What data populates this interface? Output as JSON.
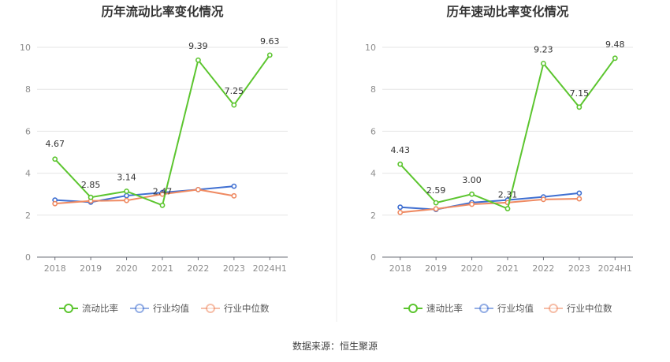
{
  "chart_data": [
    {
      "type": "line",
      "title": "历年流动比率变化情况",
      "categories": [
        "2018",
        "2019",
        "2020",
        "2021",
        "2022",
        "2023",
        "2024H1"
      ],
      "yticks": [
        "0",
        "2",
        "4",
        "6",
        "8",
        "10"
      ],
      "ylim": [
        0,
        10
      ],
      "grid": true,
      "legend_position": "bottom",
      "series": [
        {
          "name": "流动比率",
          "color": "#5cc52f",
          "values": [
            4.67,
            2.85,
            3.14,
            2.47,
            9.39,
            7.25,
            9.63
          ],
          "labels": [
            "4.67",
            "2.85",
            "3.14",
            "2.47",
            "9.39",
            "7.25",
            "9.63"
          ]
        },
        {
          "name": "行业均值",
          "color": "#3f6fd1",
          "values": [
            2.72,
            2.62,
            2.93,
            3.08,
            3.22,
            3.38,
            null
          ]
        },
        {
          "name": "行业中位数",
          "color": "#ef8a62",
          "values": [
            2.55,
            2.68,
            2.7,
            3.0,
            3.22,
            2.92,
            null
          ]
        }
      ]
    },
    {
      "type": "line",
      "title": "历年速动比率变化情况",
      "categories": [
        "2018",
        "2019",
        "2020",
        "2021",
        "2022",
        "2023",
        "2024H1"
      ],
      "yticks": [
        "0",
        "2",
        "4",
        "6",
        "8",
        "10"
      ],
      "ylim": [
        0,
        10
      ],
      "grid": true,
      "legend_position": "bottom",
      "series": [
        {
          "name": "速动比率",
          "color": "#5cc52f",
          "values": [
            4.43,
            2.59,
            3.0,
            2.31,
            9.23,
            7.15,
            9.48
          ],
          "labels": [
            "4.43",
            "2.59",
            "3.00",
            "2.31",
            "9.23",
            "7.15",
            "9.48"
          ]
        },
        {
          "name": "行业均值",
          "color": "#3f6fd1",
          "values": [
            2.38,
            2.27,
            2.6,
            2.72,
            2.87,
            3.05,
            null
          ]
        },
        {
          "name": "行业中位数",
          "color": "#ef8a62",
          "values": [
            2.13,
            2.3,
            2.52,
            2.6,
            2.75,
            2.78,
            null
          ]
        }
      ]
    }
  ],
  "footer": {
    "source": "数据来源：恒生聚源"
  }
}
